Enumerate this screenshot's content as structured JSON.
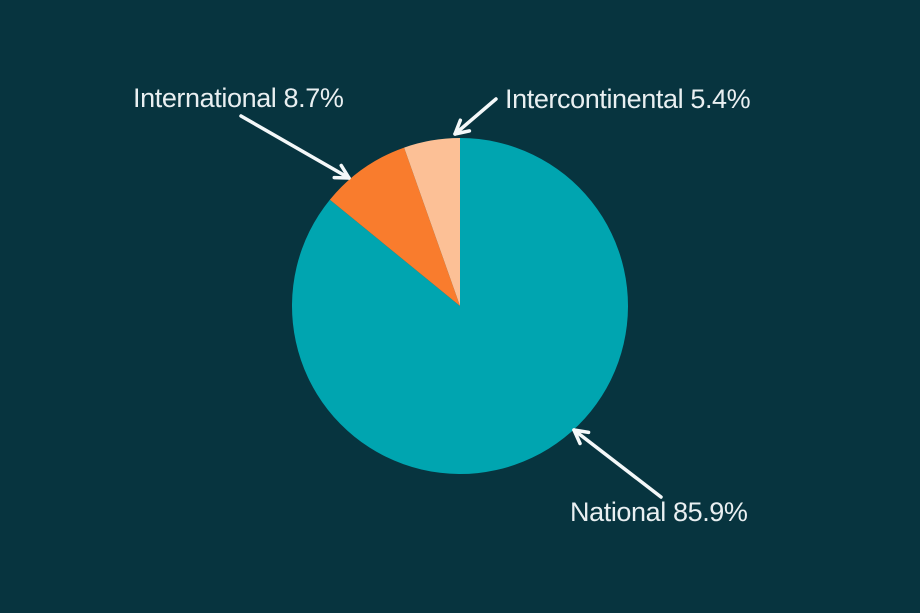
{
  "figure": {
    "background_color": "#07343f",
    "text_color": "#e9eff1",
    "arrow_color": "#f4f8f9"
  },
  "chart_data": {
    "type": "pie",
    "start_angle": "12 o'clock",
    "direction": "clockwise",
    "legend_position": "none",
    "annotation_style": "external labels with leader arrows",
    "segments": [
      {
        "label": "National",
        "value": 85.9,
        "color": "#00a5b0",
        "display": "National 85.9%"
      },
      {
        "label": "International",
        "value": 8.7,
        "color": "#f97c2d",
        "display": "International 8.7%"
      },
      {
        "label": "Intercontinental",
        "value": 5.4,
        "color": "#fcc096",
        "display": "Intercontinental 5.4%"
      }
    ]
  }
}
